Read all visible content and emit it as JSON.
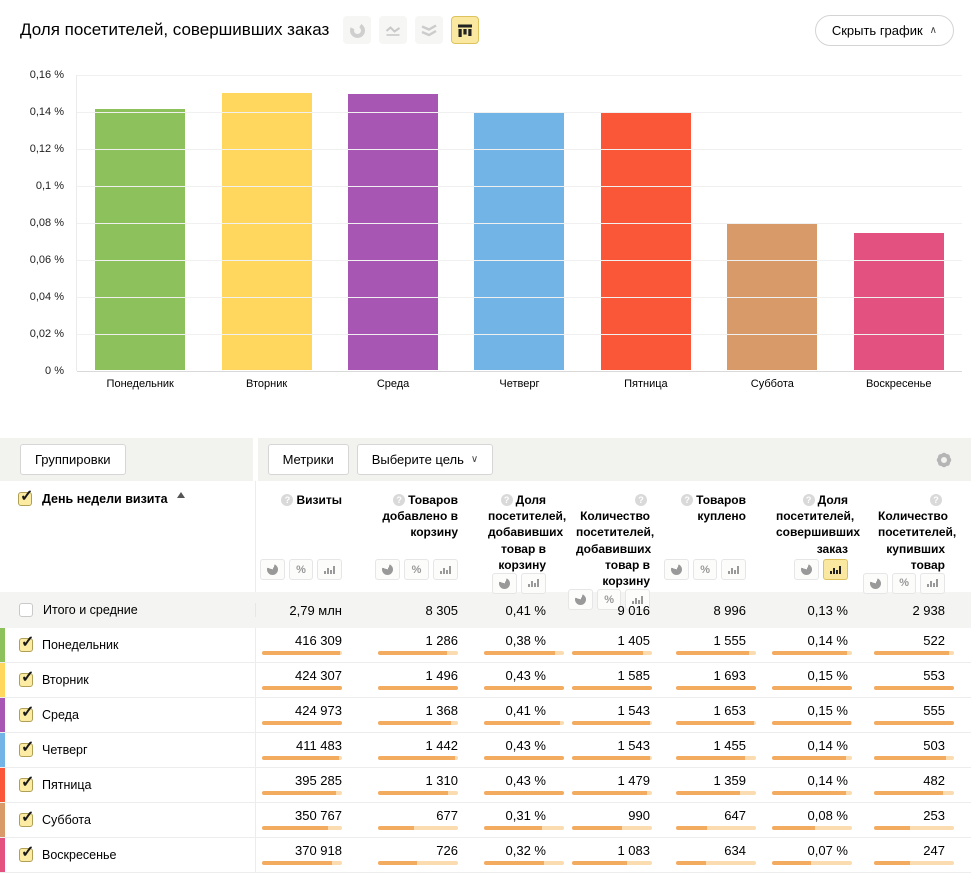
{
  "header": {
    "title": "Доля посетителей, совершивших заказ",
    "hide_chart_label": "Скрыть график",
    "hide_chart_chevron": "∧",
    "chart_types": [
      {
        "name": "pie-chart",
        "active": false
      },
      {
        "name": "line-chart",
        "active": false
      },
      {
        "name": "stacked-area-chart",
        "active": false
      },
      {
        "name": "column-chart",
        "active": true
      }
    ],
    "active_type_bg": "#fbe8a0",
    "active_type_border": "#ddc35e"
  },
  "chart_data": {
    "type": "bar",
    "title": "Доля посетителей, совершивших заказ",
    "categories": [
      "Понедельник",
      "Вторник",
      "Среда",
      "Четверг",
      "Пятница",
      "Суббота",
      "Воскресенье"
    ],
    "values": [
      0.141,
      0.15,
      0.149,
      0.139,
      0.139,
      0.079,
      0.074
    ],
    "value_unit": "%",
    "colors": [
      "#8dc15c",
      "#ffd75f",
      "#a756b3",
      "#72b4e5",
      "#fa5638",
      "#d89a68",
      "#e35180"
    ],
    "ylim": [
      0,
      0.16
    ],
    "ytick_labels": [
      "0,16 %",
      "0,14 %",
      "0,12 %",
      "0,1 %",
      "0,08 %",
      "0,06 %",
      "0,04 %",
      "0,02 %",
      "0 %"
    ],
    "grid": true,
    "legend": false
  },
  "controls": {
    "groupings_label": "Группировки",
    "metrics_label": "Метрики",
    "goal_label": "Выберите цель",
    "goal_chevron": "∨"
  },
  "table": {
    "row_header": {
      "label": "День недели визита",
      "sort": "asc",
      "checked": true
    },
    "columns": [
      {
        "label": "Визиты",
        "toggles": [
          "pie",
          "percent",
          "bars"
        ],
        "active_toggle": null
      },
      {
        "label": "Товаров добавлено в корзину",
        "toggles": [
          "pie",
          "percent",
          "bars"
        ],
        "active_toggle": null
      },
      {
        "label": "Доля посетителей, добавивших товар в корзину",
        "toggles": [
          "pie",
          "bars"
        ],
        "active_toggle": null
      },
      {
        "label": "Количество посетителей, добавивших товар в корзину",
        "toggles": [
          "pie",
          "percent",
          "bars"
        ],
        "active_toggle": null
      },
      {
        "label": "Товаров куплено",
        "toggles": [
          "pie",
          "percent",
          "bars"
        ],
        "active_toggle": null
      },
      {
        "label": "Доля посетителей, совершивших заказ",
        "toggles": [
          "pie",
          "bars"
        ],
        "active_toggle": "bars"
      },
      {
        "label": "Количество посетителей, купивших товар",
        "toggles": [
          "pie",
          "percent",
          "bars"
        ],
        "active_toggle": null
      }
    ],
    "totals": {
      "label": "Итого и средние",
      "checked": false,
      "values": [
        "2,79 млн",
        "8 305",
        "0,41 %",
        "9 016",
        "8 996",
        "0,13 %",
        "2 938"
      ]
    },
    "rows": [
      {
        "label": "Понедельник",
        "color": "#8dc15c",
        "checked": true,
        "values": [
          "416 309",
          "1 286",
          "0,38 %",
          "1 405",
          "1 555",
          "0,14 %",
          "522"
        ],
        "ratios": [
          0.98,
          0.86,
          0.884,
          0.886,
          0.918,
          0.94,
          0.941
        ]
      },
      {
        "label": "Вторник",
        "color": "#ffd75f",
        "checked": true,
        "values": [
          "424 307",
          "1 496",
          "0,43 %",
          "1 585",
          "1 693",
          "0,15 %",
          "553"
        ],
        "ratios": [
          0.998,
          1.0,
          1.0,
          1.0,
          1.0,
          1.0,
          0.996
        ]
      },
      {
        "label": "Среда",
        "color": "#a756b3",
        "checked": true,
        "values": [
          "424 973",
          "1 368",
          "0,41 %",
          "1 543",
          "1 653",
          "0,15 %",
          "555"
        ],
        "ratios": [
          1.0,
          0.914,
          0.953,
          0.973,
          0.976,
          0.993,
          1.0
        ]
      },
      {
        "label": "Четверг",
        "color": "#72b4e5",
        "checked": true,
        "values": [
          "411 483",
          "1 442",
          "0,43 %",
          "1 543",
          "1 455",
          "0,14 %",
          "503"
        ],
        "ratios": [
          0.968,
          0.964,
          1.0,
          0.973,
          0.859,
          0.927,
          0.906
        ]
      },
      {
        "label": "Пятница",
        "color": "#fa5638",
        "checked": true,
        "values": [
          "395 285",
          "1 310",
          "0,43 %",
          "1 479",
          "1 359",
          "0,14 %",
          "482"
        ],
        "ratios": [
          0.93,
          0.876,
          1.0,
          0.933,
          0.803,
          0.927,
          0.868
        ]
      },
      {
        "label": "Суббота",
        "color": "#d89a68",
        "checked": true,
        "values": [
          "350 767",
          "677",
          "0,31 %",
          "990",
          "647",
          "0,08 %",
          "253"
        ],
        "ratios": [
          0.825,
          0.453,
          0.721,
          0.625,
          0.382,
          0.533,
          0.456
        ]
      },
      {
        "label": "Воскресенье",
        "color": "#e35180",
        "checked": true,
        "values": [
          "370 918",
          "726",
          "0,32 %",
          "1 083",
          "634",
          "0,07 %",
          "247"
        ],
        "ratios": [
          0.873,
          0.485,
          0.744,
          0.683,
          0.374,
          0.493,
          0.445
        ]
      }
    ],
    "mini_bar_fill": "#f3ab60",
    "mini_bar_rest": "#fbdcb0"
  }
}
